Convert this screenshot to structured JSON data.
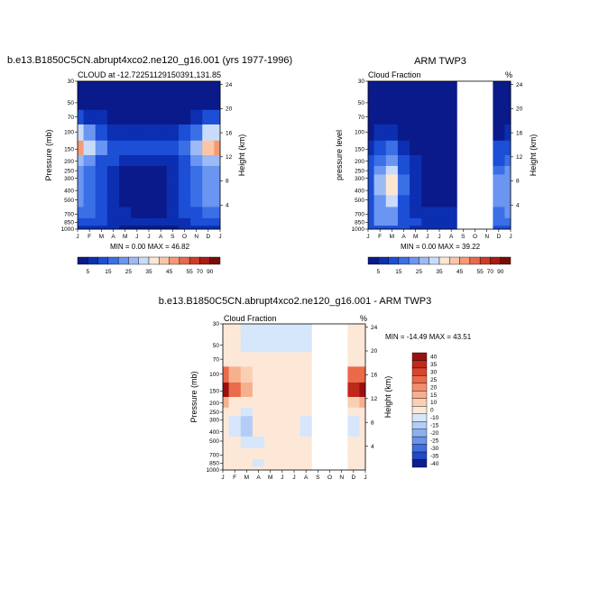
{
  "months": [
    "J",
    "F",
    "M",
    "A",
    "M",
    "J",
    "J",
    "A",
    "S",
    "O",
    "N",
    "D",
    "J"
  ],
  "pressure_ticks": [
    30,
    50,
    70,
    100,
    150,
    200,
    250,
    300,
    400,
    500,
    700,
    850,
    1000
  ],
  "height_ticks": [
    24,
    20,
    16,
    12,
    8,
    4
  ],
  "panel1": {
    "title": "b.e13.B1850C5CN.abrupt4xco2.ne120_g16.001 (yrs 1977-1996)",
    "subtitle_left": "CLOUD at -12.72251129150391,131.85",
    "ylabel": "Pressure (mb)",
    "ylabel_right": "Height (km)",
    "minmax": "MIN =   0.00 MAX =  46.82"
  },
  "panel2": {
    "title": "ARM TWP3",
    "subtitle_left": "Cloud Fraction",
    "subtitle_right": "%",
    "ylabel": "pressure level",
    "ylabel_right": "Height (km)",
    "minmax": "MIN =   0.00 MAX =  39.22"
  },
  "panel3": {
    "title": "b.e13.B1850C5CN.abrupt4xco2.ne120_g16.001 - ARM TWP3",
    "subtitle_left": "Cloud Fraction",
    "subtitle_right": "%",
    "ylabel": "Pressure (mb)",
    "ylabel_right": "Height (km)",
    "minmax": "MIN = -14.49 MAX =  43.51"
  },
  "colorbar_h": {
    "labels": [
      "5",
      "15",
      "25",
      "35",
      "45",
      "55",
      "70",
      "90"
    ],
    "colors": [
      "#0a1a8a",
      "#0b2fb0",
      "#1c4ed6",
      "#3a6fe6",
      "#6a95f0",
      "#9cbaf5",
      "#c8dcfa",
      "#fde6d2",
      "#fbc6a6",
      "#f59a74",
      "#e8694a",
      "#cf3b26",
      "#a81c12",
      "#7a0c08"
    ]
  },
  "colorbar_v": {
    "labels": [
      "40",
      "35",
      "30",
      "25",
      "20",
      "15",
      "10",
      "0",
      "-10",
      "-15",
      "-20",
      "-25",
      "-30",
      "-35",
      "-40"
    ],
    "colors": [
      "#9a1010",
      "#c0281a",
      "#d9442c",
      "#ea6a4a",
      "#f38e6c",
      "#f7b08e",
      "#fad0b4",
      "#fde8d8",
      "#d6e6fb",
      "#b4cdf6",
      "#8eb0ef",
      "#6a93ea",
      "#3f6fe0",
      "#2149c8",
      "#0d1f8e"
    ]
  },
  "chart_data": [
    {
      "type": "heatmap",
      "title": "b.e13.B1850C5CN.abrupt4xco2.ne120_g16.001 (yrs 1977-1996)",
      "xlabel": "",
      "ylabel": "Pressure (mb)",
      "x": [
        "J",
        "F",
        "M",
        "A",
        "M",
        "J",
        "J",
        "A",
        "S",
        "O",
        "N",
        "D",
        "J"
      ],
      "y": [
        30,
        50,
        70,
        100,
        150,
        200,
        250,
        300,
        400,
        500,
        700,
        850,
        1000
      ],
      "min": 0.0,
      "max": 46.82,
      "values": [
        [
          3,
          3,
          3,
          3,
          3,
          3,
          3,
          3,
          3,
          3,
          3,
          3,
          3
        ],
        [
          4,
          3,
          3,
          3,
          3,
          3,
          3,
          3,
          3,
          3,
          3,
          4,
          4
        ],
        [
          12,
          8,
          5,
          3,
          3,
          3,
          3,
          3,
          3,
          4,
          6,
          10,
          12
        ],
        [
          32,
          22,
          14,
          8,
          6,
          6,
          6,
          6,
          7,
          10,
          18,
          30,
          32
        ],
        [
          46,
          30,
          20,
          12,
          10,
          10,
          10,
          10,
          12,
          16,
          26,
          44,
          46
        ],
        [
          28,
          22,
          14,
          10,
          6,
          5,
          5,
          5,
          8,
          14,
          20,
          26,
          28
        ],
        [
          22,
          18,
          12,
          6,
          3,
          3,
          3,
          3,
          5,
          12,
          16,
          20,
          22
        ],
        [
          22,
          18,
          12,
          6,
          3,
          3,
          3,
          3,
          5,
          12,
          16,
          20,
          22
        ],
        [
          22,
          18,
          12,
          6,
          3,
          3,
          3,
          3,
          5,
          14,
          16,
          22,
          22
        ],
        [
          20,
          18,
          14,
          6,
          3,
          3,
          3,
          3,
          6,
          14,
          16,
          20,
          20
        ],
        [
          18,
          16,
          14,
          8,
          5,
          4,
          4,
          4,
          8,
          12,
          14,
          16,
          18
        ],
        [
          14,
          12,
          10,
          8,
          6,
          5,
          5,
          5,
          6,
          8,
          10,
          12,
          14
        ],
        [
          8,
          8,
          6,
          6,
          4,
          4,
          4,
          4,
          4,
          6,
          6,
          8,
          8
        ]
      ]
    },
    {
      "type": "heatmap",
      "title": "ARM TWP3",
      "xlabel": "",
      "ylabel": "pressure level",
      "x": [
        "J",
        "F",
        "M",
        "A",
        "M",
        "J",
        "J",
        "A",
        "S",
        "O",
        "N",
        "D",
        "J"
      ],
      "y": [
        30,
        50,
        70,
        100,
        150,
        200,
        250,
        300,
        400,
        500,
        700,
        850,
        1000
      ],
      "min": 0.0,
      "max": 39.22,
      "missing_months": [
        "S",
        "O",
        "N"
      ],
      "values": [
        [
          3,
          3,
          3,
          3,
          3,
          3,
          3,
          3,
          null,
          null,
          null,
          3,
          3
        ],
        [
          3,
          3,
          3,
          3,
          3,
          3,
          3,
          3,
          null,
          null,
          null,
          3,
          3
        ],
        [
          3,
          3,
          3,
          3,
          3,
          3,
          3,
          3,
          null,
          null,
          null,
          3,
          3
        ],
        [
          4,
          6,
          6,
          4,
          3,
          3,
          3,
          3,
          null,
          null,
          null,
          4,
          6
        ],
        [
          8,
          14,
          16,
          8,
          4,
          3,
          3,
          3,
          null,
          null,
          null,
          10,
          14
        ],
        [
          10,
          18,
          22,
          10,
          5,
          3,
          3,
          3,
          null,
          null,
          null,
          14,
          18
        ],
        [
          12,
          24,
          30,
          14,
          6,
          4,
          3,
          3,
          null,
          null,
          null,
          18,
          22
        ],
        [
          12,
          26,
          36,
          16,
          6,
          4,
          3,
          3,
          null,
          null,
          null,
          20,
          22
        ],
        [
          12,
          26,
          39,
          16,
          6,
          4,
          3,
          4,
          null,
          null,
          null,
          22,
          24
        ],
        [
          12,
          24,
          30,
          14,
          6,
          4,
          4,
          4,
          null,
          null,
          null,
          20,
          22
        ],
        [
          12,
          22,
          24,
          12,
          6,
          5,
          5,
          5,
          null,
          null,
          null,
          18,
          20
        ],
        [
          14,
          20,
          20,
          14,
          10,
          8,
          8,
          8,
          null,
          null,
          null,
          16,
          18
        ],
        [
          10,
          14,
          14,
          10,
          8,
          6,
          6,
          6,
          null,
          null,
          null,
          12,
          14
        ]
      ]
    },
    {
      "type": "heatmap",
      "title": "b.e13.B1850C5CN.abrupt4xco2.ne120_g16.001 - ARM TWP3",
      "xlabel": "",
      "ylabel": "Pressure (mb)",
      "x": [
        "J",
        "F",
        "M",
        "A",
        "M",
        "J",
        "J",
        "A",
        "S",
        "O",
        "N",
        "D",
        "J"
      ],
      "y": [
        30,
        50,
        70,
        100,
        150,
        200,
        250,
        300,
        400,
        500,
        700,
        850,
        1000
      ],
      "min": -14.49,
      "max": 43.51,
      "missing_months": [
        "S",
        "O",
        "N"
      ],
      "values": [
        [
          3,
          3,
          -4,
          -4,
          -4,
          -4,
          -4,
          -4,
          null,
          null,
          null,
          3,
          3
        ],
        [
          3,
          3,
          -4,
          -4,
          -4,
          -4,
          -4,
          -4,
          null,
          null,
          null,
          3,
          3
        ],
        [
          6,
          4,
          3,
          3,
          3,
          3,
          3,
          3,
          null,
          null,
          null,
          5,
          6
        ],
        [
          28,
          18,
          10,
          5,
          3,
          3,
          3,
          3,
          null,
          null,
          null,
          25,
          28
        ],
        [
          43,
          28,
          16,
          8,
          5,
          4,
          4,
          4,
          null,
          null,
          null,
          38,
          43
        ],
        [
          18,
          8,
          3,
          3,
          3,
          3,
          3,
          3,
          null,
          null,
          null,
          14,
          18
        ],
        [
          8,
          3,
          -4,
          3,
          3,
          3,
          3,
          3,
          null,
          null,
          null,
          3,
          8
        ],
        [
          5,
          -4,
          -12,
          3,
          3,
          3,
          3,
          -4,
          null,
          null,
          null,
          -4,
          5
        ],
        [
          5,
          -4,
          -14,
          3,
          3,
          3,
          3,
          -4,
          null,
          null,
          null,
          -4,
          5
        ],
        [
          5,
          3,
          -4,
          -4,
          3,
          3,
          3,
          3,
          null,
          null,
          null,
          3,
          5
        ],
        [
          5,
          3,
          3,
          3,
          3,
          3,
          3,
          3,
          null,
          null,
          null,
          3,
          5
        ],
        [
          3,
          3,
          3,
          -4,
          3,
          3,
          3,
          3,
          null,
          null,
          null,
          3,
          3
        ],
        [
          3,
          3,
          3,
          3,
          3,
          3,
          3,
          3,
          null,
          null,
          null,
          3,
          3
        ]
      ]
    }
  ]
}
